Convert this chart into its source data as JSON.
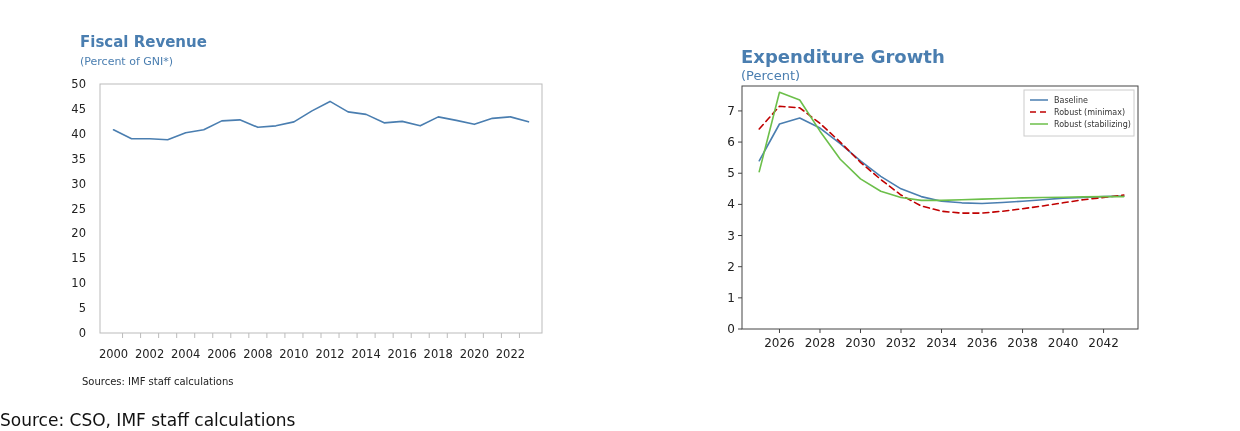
{
  "chart_data": [
    {
      "type": "line",
      "title": "Fiscal Revenue",
      "subtitle": "(Percent of GNI*)",
      "annotations": [
        "Sources: IMF staff calculations"
      ],
      "categories": [
        "2000",
        null,
        "2002",
        null,
        "2004",
        null,
        "2006",
        null,
        "2008",
        null,
        "2010",
        null,
        "2012",
        null,
        "2014",
        null,
        "2016",
        null,
        "2018",
        null,
        "2020",
        null,
        "2022",
        null
      ],
      "series": [
        {
          "color": "#4a7eb0",
          "values": [
            40.8,
            39.0,
            39.0,
            38.8,
            40.2,
            40.8,
            42.6,
            42.8,
            41.3,
            41.6,
            42.4,
            44.6,
            46.5,
            44.4,
            43.9,
            42.2,
            42.5,
            41.6,
            43.4,
            42.7,
            41.9,
            43.1,
            43.4,
            42.4
          ]
        }
      ],
      "ylim": [
        0,
        50
      ],
      "yticks": [
        0,
        5,
        10,
        15,
        20,
        25,
        30,
        35,
        40,
        45,
        50
      ],
      "grid": false,
      "legend": false
    },
    {
      "type": "line",
      "title": "Expenditure Growth",
      "subtitle": "(Percent)",
      "annotations": [
        "Source: CSO, IMF staff calculations"
      ],
      "x": [
        2025,
        2026,
        2027,
        2028,
        2029,
        2030,
        2031,
        2032,
        2033,
        2034,
        2035,
        2036,
        2037,
        2038,
        2039,
        2040,
        2041,
        2042,
        2043
      ],
      "series": [
        {
          "name": "Baseline",
          "color": "#4a7eb0",
          "line_style": "solid",
          "values": [
            5.4,
            6.58,
            6.77,
            6.45,
            5.95,
            5.4,
            4.9,
            4.5,
            4.25,
            4.1,
            4.05,
            4.03,
            4.06,
            4.1,
            4.15,
            4.2,
            4.22,
            4.25,
            4.27
          ]
        },
        {
          "name": "Robust (minimax)",
          "color": "#c00000",
          "line_style": "dashed",
          "values": [
            6.42,
            7.15,
            7.1,
            6.6,
            6.0,
            5.35,
            4.8,
            4.3,
            3.95,
            3.78,
            3.72,
            3.72,
            3.78,
            3.86,
            3.95,
            4.05,
            4.15,
            4.22,
            4.3
          ]
        },
        {
          "name": "Robust (stabilizing)",
          "color": "#6cbf4a",
          "line_style": "solid",
          "values": [
            5.05,
            7.6,
            7.35,
            6.35,
            5.45,
            4.82,
            4.42,
            4.22,
            4.13,
            4.13,
            4.15,
            4.17,
            4.19,
            4.21,
            4.22,
            4.23,
            4.24,
            4.25,
            4.25
          ]
        }
      ],
      "xlim": [
        2024.15,
        2043.7
      ],
      "xticks": [
        2026,
        2028,
        2030,
        2032,
        2034,
        2036,
        2038,
        2040,
        2042
      ],
      "ylim": [
        0,
        7.8
      ],
      "yticks": [
        0,
        1,
        2,
        3,
        4,
        5,
        6,
        7
      ],
      "grid": false,
      "legend": "top right"
    }
  ]
}
